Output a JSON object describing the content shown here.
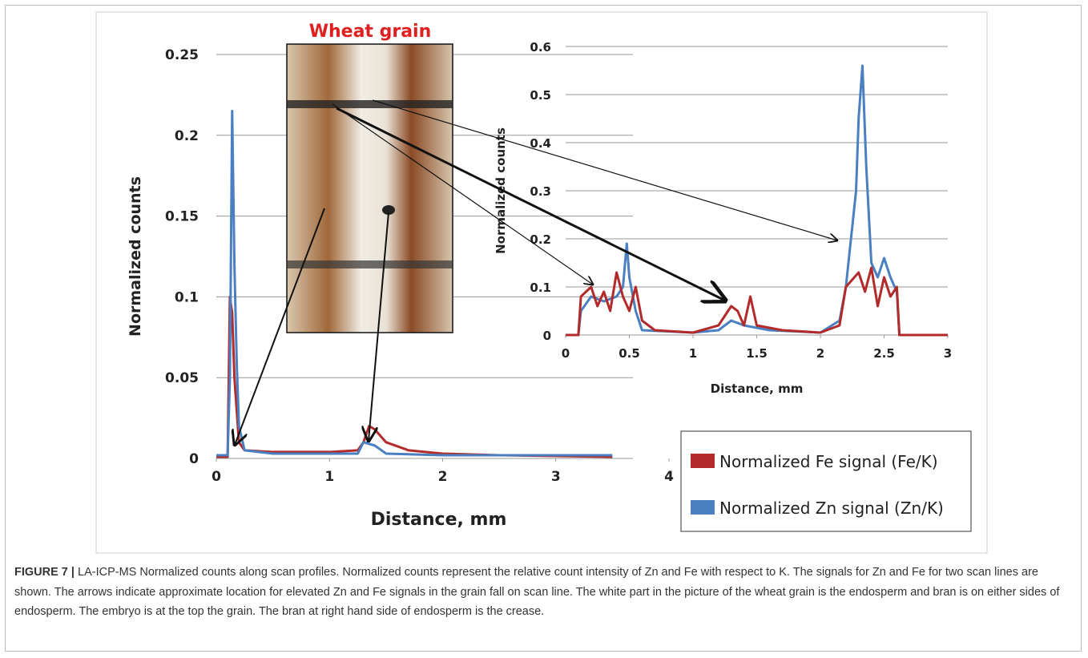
{
  "chart_data": [
    {
      "type": "line",
      "ylabel": "Normalized counts",
      "xlabel": "Distance, mm",
      "xlim": [
        0,
        4
      ],
      "xticks": [
        0,
        1,
        2,
        3,
        4
      ],
      "ylim": [
        0,
        0.25
      ],
      "yticks": [
        0,
        0.05,
        0.1,
        0.15,
        0.2,
        0.25
      ],
      "grid": true,
      "series": [
        {
          "name": "Normalized Fe signal (Fe/K)",
          "color": "#b22a2a",
          "x": [
            0,
            0.1,
            0.12,
            0.14,
            0.16,
            0.18,
            0.2,
            0.25,
            0.5,
            1,
            1.25,
            1.3,
            1.35,
            1.4,
            1.5,
            1.7,
            2,
            2.5,
            3.5
          ],
          "values": [
            0.001,
            0.001,
            0.1,
            0.09,
            0.05,
            0.03,
            0.01,
            0.005,
            0.004,
            0.004,
            0.005,
            0.01,
            0.02,
            0.018,
            0.01,
            0.005,
            0.003,
            0.002,
            0.001
          ]
        },
        {
          "name": "Normalized Zn signal (Zn/K)",
          "color": "#4a7fc1",
          "x": [
            0,
            0.1,
            0.12,
            0.14,
            0.16,
            0.18,
            0.2,
            0.25,
            0.5,
            1,
            1.25,
            1.3,
            1.4,
            1.5,
            2,
            2.6,
            3,
            3.5
          ],
          "values": [
            0.002,
            0.002,
            0.05,
            0.215,
            0.12,
            0.06,
            0.02,
            0.005,
            0.003,
            0.003,
            0.003,
            0.01,
            0.008,
            0.003,
            0.002,
            0.002,
            0.002,
            0.002
          ]
        }
      ]
    },
    {
      "type": "line",
      "ylabel": "Normalized counts",
      "xlabel": "Distance, mm",
      "xlim": [
        0,
        3
      ],
      "xticks": [
        0,
        0.5,
        1,
        1.5,
        2,
        2.5,
        3
      ],
      "ylim": [
        0,
        0.6
      ],
      "yticks": [
        0,
        0.1,
        0.2,
        0.3,
        0.4,
        0.5,
        0.6
      ],
      "grid": true,
      "series": [
        {
          "color": "#4a7fc1",
          "x": [
            0,
            0.1,
            0.12,
            0.2,
            0.3,
            0.4,
            0.45,
            0.48,
            0.5,
            0.55,
            0.6,
            1.0,
            1.2,
            1.3,
            1.4,
            1.6,
            2.0,
            2.15,
            2.2,
            2.28,
            2.3,
            2.33,
            2.36,
            2.4,
            2.45,
            2.5,
            2.55,
            2.6,
            2.62,
            3.0
          ],
          "values": [
            0,
            0,
            0.05,
            0.08,
            0.07,
            0.08,
            0.1,
            0.19,
            0.12,
            0.05,
            0.01,
            0.005,
            0.01,
            0.03,
            0.02,
            0.01,
            0.005,
            0.03,
            0.1,
            0.3,
            0.45,
            0.56,
            0.35,
            0.15,
            0.12,
            0.16,
            0.12,
            0.09,
            0,
            0
          ]
        },
        {
          "color": "#b22a2a",
          "x": [
            0,
            0.1,
            0.12,
            0.2,
            0.25,
            0.3,
            0.35,
            0.4,
            0.45,
            0.5,
            0.55,
            0.6,
            0.7,
            1.0,
            1.2,
            1.25,
            1.3,
            1.35,
            1.4,
            1.45,
            1.5,
            1.7,
            2.0,
            2.15,
            2.2,
            2.3,
            2.35,
            2.4,
            2.45,
            2.5,
            2.55,
            2.6,
            2.62,
            3.0
          ],
          "values": [
            0,
            0,
            0.08,
            0.1,
            0.06,
            0.09,
            0.05,
            0.13,
            0.08,
            0.05,
            0.1,
            0.03,
            0.01,
            0.005,
            0.02,
            0.04,
            0.06,
            0.05,
            0.02,
            0.08,
            0.02,
            0.01,
            0.005,
            0.02,
            0.1,
            0.13,
            0.09,
            0.14,
            0.06,
            0.12,
            0.08,
            0.1,
            0,
            0
          ]
        }
      ]
    }
  ],
  "photo": {
    "label": "Wheat grain"
  },
  "caption": {
    "label": "FIGURE 7 |",
    "text": "LA-ICP-MS Normalized counts along scan profiles. Normalized counts represent the relative count intensity of Zn and Fe with respect to K. The signals for Zn and Fe for two scan lines are shown. The arrows indicate approximate location for elevated Zn and Fe signals in the grain fall on scan line. The white part in the picture of the wheat grain is the endosperm and bran is on either sides of endosperm. The embryo is at the top the grain. The bran at right hand side of endosperm is the crease."
  }
}
